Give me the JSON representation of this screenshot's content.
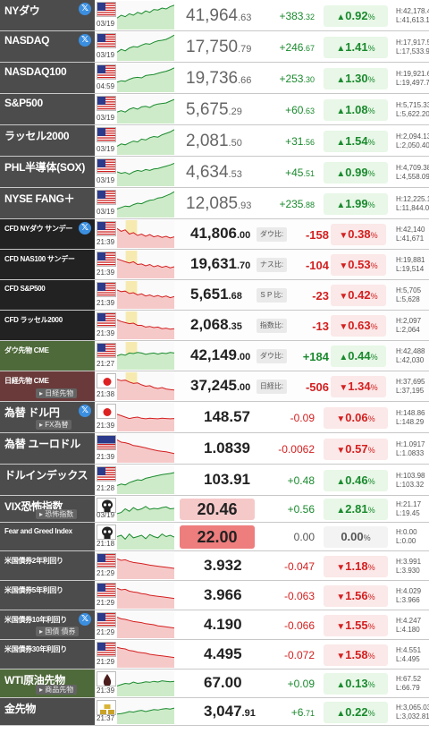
{
  "colors": {
    "up": "#1a8a2e",
    "down": "#d42020",
    "up_bg": "#e8f7e7",
    "down_bg": "#fbe8e8",
    "row_label_bg": "#4c4c4c",
    "highlight": "#f0c0c0"
  },
  "rows": [
    {
      "label": "NYダウ",
      "size": "big",
      "twitter": true,
      "flag": "us",
      "time": "03/19",
      "price_main": "41,964",
      "price_dec": ".63",
      "change_main": "+383",
      "change_dec": ".32",
      "pct_main": "0.92",
      "dir": "up",
      "high": "H:42,178.41",
      "low": "L:41,613.19",
      "trend": [
        0.4,
        0.5,
        0.45,
        0.55,
        0.5,
        0.6,
        0.55,
        0.65,
        0.6,
        0.7,
        0.68,
        0.75,
        0.72,
        0.8,
        0.85
      ]
    },
    {
      "label": "NASDAQ",
      "size": "big",
      "twitter": true,
      "flag": "us",
      "time": "03/19",
      "price_main": "17,750",
      "price_dec": ".79",
      "change_main": "+246",
      "change_dec": ".67",
      "pct_main": "1.41",
      "dir": "up",
      "high": "H:17,917.54",
      "low": "L:17,533.94",
      "trend": [
        0.3,
        0.4,
        0.35,
        0.45,
        0.5,
        0.48,
        0.55,
        0.6,
        0.58,
        0.65,
        0.7,
        0.72,
        0.75,
        0.82,
        0.9
      ]
    },
    {
      "label": "NASDAQ100",
      "size": "big",
      "twitter": false,
      "flag": "us",
      "time": "04:59",
      "price_main": "19,736",
      "price_dec": ".66",
      "change_main": "+253",
      "change_dec": ".30",
      "pct_main": "1.30",
      "dir": "up",
      "high": "H:19,921.62",
      "low": "L:19,497.79",
      "trend": [
        0.35,
        0.4,
        0.38,
        0.45,
        0.5,
        0.52,
        0.5,
        0.58,
        0.6,
        0.62,
        0.66,
        0.7,
        0.73,
        0.78,
        0.85
      ]
    },
    {
      "label": "S&P500",
      "size": "big",
      "twitter": false,
      "flag": "us",
      "time": "03/19",
      "price_main": "5,675",
      "price_dec": ".29",
      "change_main": "+60",
      "change_dec": ".63",
      "pct_main": "1.08",
      "dir": "up",
      "high": "H:5,715.33",
      "low": "L:5,622.20",
      "trend": [
        0.4,
        0.45,
        0.4,
        0.5,
        0.55,
        0.5,
        0.58,
        0.6,
        0.56,
        0.64,
        0.68,
        0.7,
        0.72,
        0.78,
        0.84
      ]
    },
    {
      "label": "ラッセル2000",
      "size": "big",
      "twitter": false,
      "flag": "us",
      "time": "03/19",
      "price_main": "2,081",
      "price_dec": ".50",
      "change_main": "+31",
      "change_dec": ".56",
      "pct_main": "1.54",
      "dir": "up",
      "high": "H:2,094.13",
      "low": "L:2,050.40",
      "trend": [
        0.3,
        0.38,
        0.35,
        0.42,
        0.48,
        0.45,
        0.55,
        0.52,
        0.6,
        0.64,
        0.62,
        0.7,
        0.75,
        0.8,
        0.88
      ]
    },
    {
      "label": "PHL半導体(SOX)",
      "size": "big",
      "twitter": false,
      "flag": "us",
      "time": "03/19",
      "price_main": "4,634",
      "price_dec": ".53",
      "change_main": "+45",
      "change_dec": ".51",
      "pct_main": "0.99",
      "dir": "up",
      "high": "H:4,709.38",
      "low": "L:4,558.09",
      "trend": [
        0.5,
        0.45,
        0.48,
        0.42,
        0.5,
        0.55,
        0.52,
        0.58,
        0.55,
        0.6,
        0.62,
        0.66,
        0.7,
        0.74,
        0.8
      ]
    },
    {
      "label": "NYSE FANG＋",
      "size": "big",
      "twitter": false,
      "flag": "us",
      "time": "03/19",
      "price_main": "12,085",
      "price_dec": ".93",
      "change_main": "+235",
      "change_dec": ".88",
      "pct_main": "1.99",
      "dir": "up",
      "high": "H:12,225.12",
      "low": "L:11,844.04",
      "trend": [
        0.3,
        0.35,
        0.4,
        0.38,
        0.45,
        0.5,
        0.48,
        0.55,
        0.6,
        0.62,
        0.68,
        0.7,
        0.76,
        0.82,
        0.9
      ]
    },
    {
      "label": "CFD NYダウ サンデー",
      "size": "small",
      "twitter": true,
      "flag": "us",
      "time": "21:39",
      "price_main": "41,806",
      "price_dec": ".00",
      "cfd_label": "ダウ比:",
      "change_main": "-158",
      "change_dec": "",
      "pct_main": "0.38",
      "dir": "down",
      "high": "H:42,140",
      "low": "L:41,671",
      "trend": [
        0.7,
        0.6,
        0.65,
        0.5,
        0.55,
        0.45,
        0.5,
        0.42,
        0.48,
        0.4,
        0.44,
        0.38,
        0.42,
        0.36,
        0.4
      ]
    },
    {
      "label": "CFD NAS100 サンデー",
      "size": "small",
      "twitter": false,
      "flag": "us",
      "time": "21:39",
      "price_main": "19,631",
      "price_dec": ".70",
      "cfd_label": "ナス比:",
      "change_main": "-104",
      "change_dec": "",
      "pct_main": "0.53",
      "dir": "down",
      "high": "H:19,881",
      "low": "L:19,514",
      "trend": [
        0.7,
        0.65,
        0.6,
        0.55,
        0.6,
        0.5,
        0.52,
        0.45,
        0.5,
        0.42,
        0.46,
        0.4,
        0.44,
        0.38,
        0.42
      ]
    },
    {
      "label": "CFD S&P500",
      "size": "small",
      "twitter": false,
      "flag": "us",
      "time": "21:39",
      "price_main": "5,651",
      "price_dec": ".68",
      "cfd_label": "S P 比:",
      "change_main": "-23",
      "change_dec": "",
      "pct_main": "0.42",
      "dir": "down",
      "high": "H:5,705",
      "low": "L:5,628",
      "trend": [
        0.68,
        0.62,
        0.64,
        0.55,
        0.58,
        0.5,
        0.54,
        0.46,
        0.5,
        0.44,
        0.48,
        0.42,
        0.46,
        0.4,
        0.44
      ]
    },
    {
      "label": "CFD ラッセル2000",
      "size": "small",
      "twitter": false,
      "flag": "us",
      "time": "21:39",
      "price_main": "2,068",
      "price_dec": ".35",
      "cfd_label": "指数比:",
      "change_main": "-13",
      "change_dec": "",
      "pct_main": "0.63",
      "dir": "down",
      "high": "H:2,097",
      "low": "L:2,064",
      "trend": [
        0.7,
        0.64,
        0.6,
        0.56,
        0.58,
        0.5,
        0.5,
        0.44,
        0.46,
        0.42,
        0.44,
        0.38,
        0.4,
        0.36,
        0.38
      ]
    },
    {
      "label": "ダウ先物 CME",
      "size": "small",
      "twitter": false,
      "flag": "us",
      "time": "21:27",
      "price_main": "42,149",
      "price_dec": ".00",
      "cfd_label": "ダウ比:",
      "change_main": "+184",
      "change_dec": "",
      "pct_main": "0.44",
      "dir": "up",
      "high": "H:42,488",
      "low": "L:42,030",
      "trend": [
        0.5,
        0.55,
        0.52,
        0.6,
        0.58,
        0.62,
        0.6,
        0.55,
        0.58,
        0.6,
        0.56,
        0.6,
        0.58,
        0.62,
        0.6
      ]
    },
    {
      "label": "日経先物 CME",
      "size": "small",
      "twitter": false,
      "flag": "jp",
      "sub": "日経先物",
      "time": "21:38",
      "price_main": "37,245",
      "price_dec": ".00",
      "cfd_label": "日経比:",
      "change_main": "-506",
      "change_dec": "",
      "pct_main": "1.34",
      "dir": "down",
      "high": "H:37,695",
      "low": "L:37,195",
      "trend": [
        0.75,
        0.7,
        0.72,
        0.65,
        0.6,
        0.62,
        0.55,
        0.5,
        0.52,
        0.45,
        0.42,
        0.45,
        0.4,
        0.38,
        0.36
      ]
    },
    {
      "label": "為替 ドル円",
      "size": "big",
      "twitter": true,
      "flag": "jp",
      "sub": "FX為替",
      "time": "21:39",
      "price_main": "148.57",
      "price_dec": "",
      "change_main": "-0.09",
      "change_dec": "",
      "pct_main": "0.06",
      "dir": "down",
      "high": "H:148.86",
      "low": "L:148.29",
      "trend": [
        0.6,
        0.55,
        0.5,
        0.45,
        0.48,
        0.5,
        0.46,
        0.44,
        0.46,
        0.45,
        0.44,
        0.46,
        0.45,
        0.44,
        0.45
      ]
    },
    {
      "label": "為替 ユーロドル",
      "size": "big",
      "twitter": false,
      "flag": "eu",
      "time": "21:39",
      "price_main": "1.0839",
      "price_dec": "",
      "change_main": "-0.0062",
      "change_dec": "",
      "pct_main": "0.57",
      "dir": "down",
      "high": "H:1.0917",
      "low": "L:1.0833",
      "trend": [
        0.8,
        0.72,
        0.7,
        0.66,
        0.6,
        0.58,
        0.55,
        0.52,
        0.48,
        0.45,
        0.42,
        0.4,
        0.38,
        0.35,
        0.32
      ]
    },
    {
      "label": "ドルインデックス",
      "size": "big",
      "twitter": false,
      "flag": "us",
      "time": "21:28",
      "price_main": "103.91",
      "price_dec": "",
      "change_main": "+0.48",
      "change_dec": "",
      "pct_main": "0.46",
      "dir": "up",
      "high": "H:103.98",
      "low": "L:103.32",
      "trend": [
        0.3,
        0.35,
        0.32,
        0.4,
        0.45,
        0.5,
        0.48,
        0.55,
        0.58,
        0.62,
        0.65,
        0.68,
        0.7,
        0.72,
        0.75
      ]
    },
    {
      "label": "VIX恐怖指数",
      "size": "big",
      "twitter": false,
      "flag": "skull",
      "sub": "恐怖指数",
      "time": "03/19",
      "price_main": "20.46",
      "price_dec": "",
      "change_main": "+0.56",
      "change_dec": "",
      "pct_main": "2.81",
      "dir": "up",
      "high": "H:21.17",
      "low": "L:19.45",
      "trend": [
        0.3,
        0.35,
        0.5,
        0.4,
        0.55,
        0.45,
        0.5,
        0.6,
        0.48,
        0.52,
        0.5,
        0.55,
        0.58,
        0.5,
        0.52
      ],
      "box": "pink"
    },
    {
      "label": "Fear and Greed Index",
      "size": "small",
      "twitter": false,
      "flag": "skull",
      "time": "21:18",
      "price_main": "22.00",
      "price_dec": "",
      "change_main": "0.00",
      "change_dec": "",
      "pct_main": "0.00",
      "dir": "flat",
      "high": "H:0.00",
      "low": "L:0.00",
      "trend": [
        0.5,
        0.55,
        0.4,
        0.6,
        0.45,
        0.5,
        0.55,
        0.42,
        0.58,
        0.5,
        0.45,
        0.6,
        0.5,
        0.55,
        0.48
      ],
      "box": "red"
    },
    {
      "label": "米国債券2年利回り",
      "size": "small",
      "twitter": false,
      "flag": "us",
      "time": "21:29",
      "price_main": "3.932",
      "price_dec": "",
      "change_main": "-0.047",
      "change_dec": "",
      "pct_main": "1.18",
      "dir": "down",
      "high": "H:3.991",
      "low": "L:3.930",
      "trend": [
        0.75,
        0.7,
        0.72,
        0.66,
        0.62,
        0.6,
        0.58,
        0.55,
        0.52,
        0.5,
        0.48,
        0.46,
        0.44,
        0.42,
        0.4
      ]
    },
    {
      "label": "米国債券5年利回り",
      "size": "small",
      "twitter": false,
      "flag": "us",
      "time": "21:29",
      "price_main": "3.966",
      "price_dec": "",
      "change_main": "-0.063",
      "change_dec": "",
      "pct_main": "1.56",
      "dir": "down",
      "high": "H:4.029",
      "low": "L:3.966",
      "trend": [
        0.76,
        0.7,
        0.72,
        0.65,
        0.62,
        0.6,
        0.56,
        0.54,
        0.5,
        0.48,
        0.46,
        0.44,
        0.42,
        0.4,
        0.38
      ]
    },
    {
      "label": "米国債券10年利回り",
      "size": "small",
      "twitter": true,
      "flag": "us",
      "sub": "国債 債券",
      "time": "21:29",
      "price_main": "4.190",
      "price_dec": "",
      "change_main": "-0.066",
      "change_dec": "",
      "pct_main": "1.55",
      "dir": "down",
      "high": "H:4.247",
      "low": "L:4.180",
      "trend": [
        0.78,
        0.72,
        0.7,
        0.66,
        0.62,
        0.6,
        0.58,
        0.54,
        0.52,
        0.5,
        0.46,
        0.44,
        0.42,
        0.4,
        0.38
      ]
    },
    {
      "label": "米国債券30年利回り",
      "size": "small",
      "twitter": false,
      "flag": "us",
      "time": "21:29",
      "price_main": "4.495",
      "price_dec": "",
      "change_main": "-0.072",
      "change_dec": "",
      "pct_main": "1.58",
      "dir": "down",
      "high": "H:4.551",
      "low": "L:4.495",
      "trend": [
        0.76,
        0.72,
        0.7,
        0.64,
        0.62,
        0.58,
        0.56,
        0.54,
        0.5,
        0.48,
        0.46,
        0.44,
        0.42,
        0.4,
        0.38
      ]
    },
    {
      "label": "WTI原油先物",
      "size": "big",
      "twitter": false,
      "flag": "oil",
      "sub": "商品先物",
      "time": "21:39",
      "price_main": "67.00",
      "price_dec": "",
      "change_main": "+0.09",
      "change_dec": "",
      "pct_main": "0.13",
      "dir": "up",
      "high": "H:67.52",
      "low": "L:66.79",
      "trend": [
        0.4,
        0.45,
        0.5,
        0.48,
        0.55,
        0.5,
        0.52,
        0.56,
        0.54,
        0.58,
        0.55,
        0.6,
        0.58,
        0.56,
        0.58
      ]
    },
    {
      "label": "金先物",
      "size": "big",
      "twitter": false,
      "flag": "gold",
      "time": "21:37",
      "price_main": "3,047",
      "price_dec": ".91",
      "change_main": "+6",
      "change_dec": ".71",
      "pct_main": "0.22",
      "dir": "up",
      "high": "H:3,065.03",
      "low": "L:3,032.81",
      "trend": [
        0.4,
        0.42,
        0.45,
        0.5,
        0.48,
        0.52,
        0.55,
        0.5,
        0.54,
        0.58,
        0.56,
        0.6,
        0.62,
        0.6,
        0.64
      ]
    }
  ]
}
